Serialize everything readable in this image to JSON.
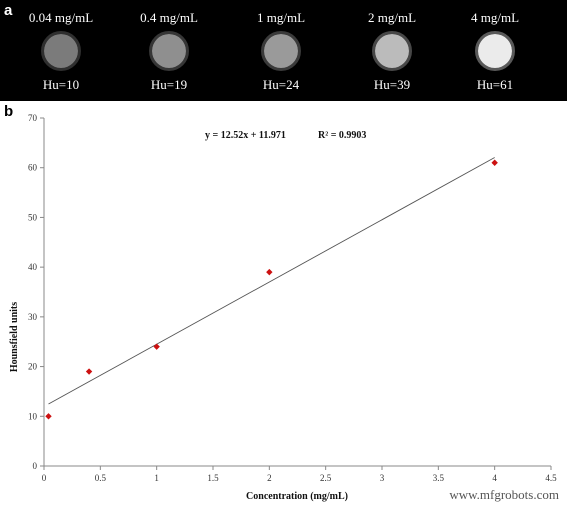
{
  "panel_a": {
    "letter": "a",
    "phantoms": [
      {
        "concentration_label": "0.04 mg/mL",
        "hu_label": "Hu=10",
        "hu": 10
      },
      {
        "concentration_label": "0.4 mg/mL",
        "hu_label": "Hu=19",
        "hu": 19
      },
      {
        "concentration_label": "1 mg/mL",
        "hu_label": "Hu=24",
        "hu": 24
      },
      {
        "concentration_label": "2 mg/mL",
        "hu_label": "Hu=39",
        "hu": 39
      },
      {
        "concentration_label": "4 mg/mL",
        "hu_label": "Hu=61",
        "hu": 61
      }
    ],
    "background_color": "#000000"
  },
  "panel_b": {
    "letter": "b"
  },
  "chart_data": {
    "type": "scatter",
    "series": [
      {
        "x": [
          0.04,
          0.4,
          1,
          2,
          4
        ],
        "y": [
          10,
          19,
          24,
          39,
          61
        ],
        "marker": "diamond",
        "color": "#cc1111"
      }
    ],
    "trendline": {
      "slope": 12.52,
      "intercept": 11.971,
      "x_range": [
        0.04,
        4
      ],
      "color": "#555555"
    },
    "annotation": "y = 12.52x + 11.971",
    "r_squared_label": "R² = 0.9903",
    "xlabel": "Concentration (mg/mL)",
    "ylabel": "Hounsfield units",
    "xlim": [
      0,
      4.5
    ],
    "ylim": [
      0,
      70
    ],
    "xticks": [
      0,
      0.5,
      1,
      1.5,
      2,
      2.5,
      3,
      3.5,
      4,
      4.5
    ],
    "xtick_labels": [
      "0",
      "0.5",
      "1",
      "1.5",
      "2",
      "2.5",
      "3",
      "3.5",
      "4",
      "4.5"
    ],
    "yticks": [
      0,
      10,
      20,
      30,
      40,
      50,
      60,
      70
    ],
    "ytick_labels": [
      "0",
      "10",
      "20",
      "30",
      "40",
      "50",
      "60",
      "70"
    ],
    "grid": false,
    "legend": "none"
  },
  "watermark": "www.mfgrobots.com"
}
